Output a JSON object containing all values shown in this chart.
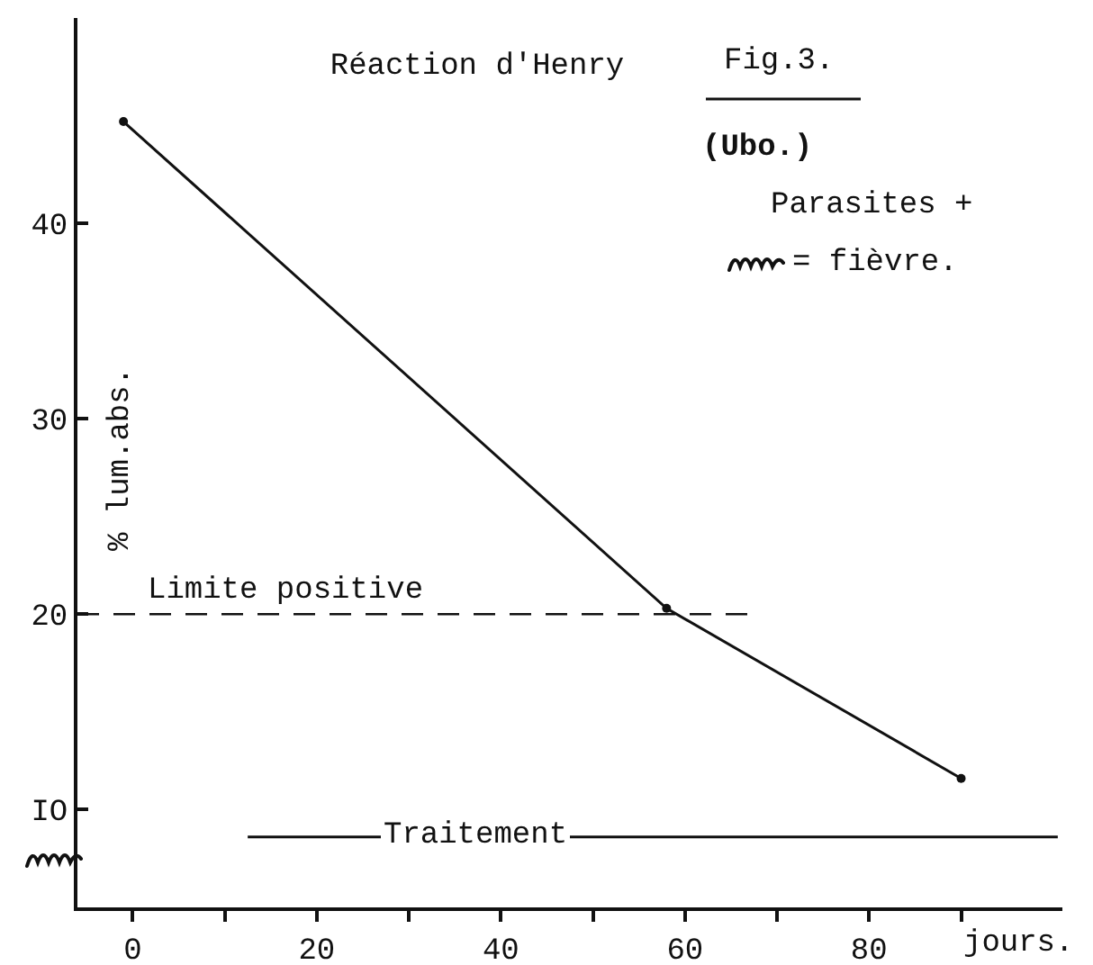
{
  "chart_data": {
    "type": "line",
    "title": "Réaction d'Henry",
    "xlabel": "jours.",
    "ylabel": "% lum.abs.",
    "annotations": [
      "Fig.3.",
      "(Ubo.)",
      "Parasites +",
      "= fièvre."
    ],
    "series": [
      {
        "color": "#111111",
        "x": [
          -1,
          58,
          90
        ],
        "values": [
          45.2,
          20.3,
          11.6
        ]
      },
      {
        "name": "Traitement",
        "color": "#111111",
        "x": [
          12.5,
          100.5
        ],
        "values": [
          8.6,
          8.6
        ],
        "marker": "none"
      }
    ],
    "xlim": [
      -6,
      101
    ],
    "ylim": [
      5,
      50.5
    ],
    "xticks": [
      0,
      {
        "value": 10,
        "label": null
      },
      20,
      {
        "value": 30,
        "label": null
      },
      40,
      {
        "value": 50,
        "label": null
      },
      60,
      {
        "value": 70,
        "label": null
      },
      80,
      {
        "value": 90,
        "label": null
      }
    ],
    "yticks": [
      {
        "value": 10,
        "label": "IO"
      },
      20,
      30,
      40
    ],
    "ref_lines": [
      {
        "axis": "y",
        "value": 20,
        "label": "Limite positive",
        "line_style": "dashed",
        "color": "#111111"
      }
    ],
    "grid": false,
    "legend": false,
    "marker": "circle",
    "line_style": "solid"
  }
}
